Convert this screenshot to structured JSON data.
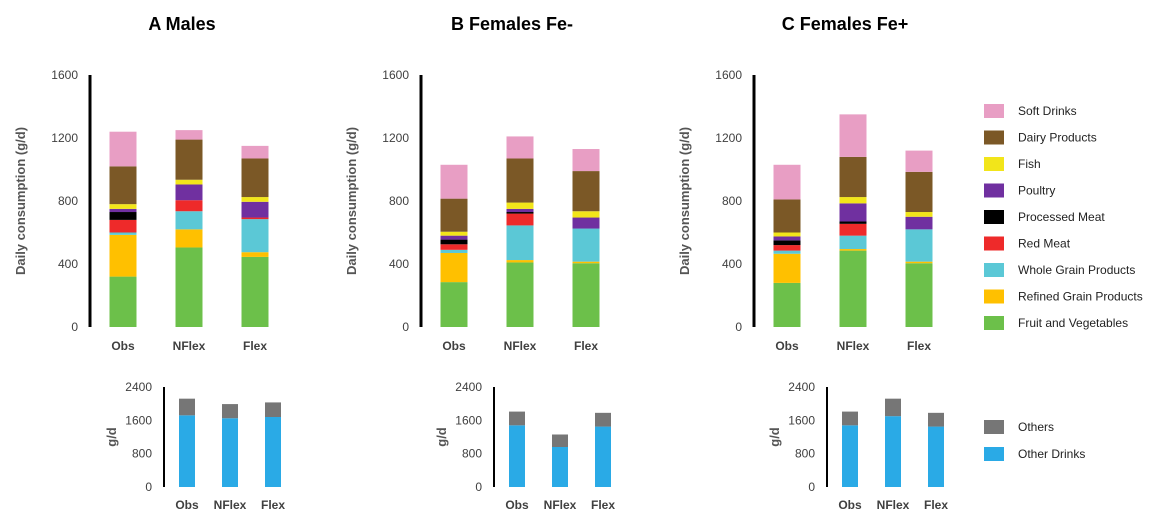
{
  "chart_data": [
    {
      "type": "bar",
      "stacked": true,
      "panel": "upper",
      "title": "A  Males",
      "ylabel": "Daily consumption (g/d)",
      "categories": [
        "Obs",
        "NFlex",
        "Flex"
      ],
      "ylim": [
        0,
        1600
      ],
      "yticks": [
        0,
        400,
        800,
        1200,
        1600
      ],
      "series": [
        {
          "name": "Fruit and Vegetables",
          "values": [
            320,
            505,
            445
          ]
        },
        {
          "name": "Refined Grain Products",
          "values": [
            265,
            115,
            30
          ]
        },
        {
          "name": "Whole Grain Products",
          "values": [
            15,
            115,
            210
          ]
        },
        {
          "name": "Red Meat",
          "values": [
            80,
            70,
            10
          ]
        },
        {
          "name": "Processed Meat",
          "values": [
            50,
            0,
            0
          ]
        },
        {
          "name": "Poultry",
          "values": [
            20,
            100,
            100
          ]
        },
        {
          "name": "Fish",
          "values": [
            30,
            30,
            30
          ]
        },
        {
          "name": "Dairy Products",
          "values": [
            240,
            255,
            245
          ]
        },
        {
          "name": "Soft Drinks",
          "values": [
            220,
            60,
            80
          ]
        }
      ]
    },
    {
      "type": "bar",
      "stacked": true,
      "panel": "upper",
      "title": "B  Females Fe-",
      "ylabel": "Daily consumption (g/d)",
      "categories": [
        "Obs",
        "NFlex",
        "Flex"
      ],
      "ylim": [
        0,
        1600
      ],
      "yticks": [
        0,
        400,
        800,
        1200,
        1600
      ],
      "series": [
        {
          "name": "Fruit and Vegetables",
          "values": [
            285,
            410,
            405
          ]
        },
        {
          "name": "Refined Grain Products",
          "values": [
            185,
            15,
            10
          ]
        },
        {
          "name": "Whole Grain Products",
          "values": [
            20,
            220,
            210
          ]
        },
        {
          "name": "Red Meat",
          "values": [
            35,
            75,
            0
          ]
        },
        {
          "name": "Processed Meat",
          "values": [
            30,
            10,
            0
          ]
        },
        {
          "name": "Poultry",
          "values": [
            25,
            20,
            70
          ]
        },
        {
          "name": "Fish",
          "values": [
            25,
            40,
            40
          ]
        },
        {
          "name": "Dairy Products",
          "values": [
            210,
            280,
            255
          ]
        },
        {
          "name": "Soft Drinks",
          "values": [
            215,
            140,
            140
          ]
        }
      ]
    },
    {
      "type": "bar",
      "stacked": true,
      "panel": "upper",
      "title": "C  Females Fe+",
      "ylabel": "Daily consumption (g/d)",
      "categories": [
        "Obs",
        "NFlex",
        "Flex"
      ],
      "ylim": [
        0,
        1600
      ],
      "yticks": [
        0,
        400,
        800,
        1200,
        1600
      ],
      "series": [
        {
          "name": "Fruit and Vegetables",
          "values": [
            280,
            485,
            405
          ]
        },
        {
          "name": "Refined Grain Products",
          "values": [
            185,
            10,
            10
          ]
        },
        {
          "name": "Whole Grain Products",
          "values": [
            20,
            85,
            205
          ]
        },
        {
          "name": "Red Meat",
          "values": [
            35,
            75,
            0
          ]
        },
        {
          "name": "Processed Meat",
          "values": [
            30,
            15,
            0
          ]
        },
        {
          "name": "Poultry",
          "values": [
            25,
            115,
            80
          ]
        },
        {
          "name": "Fish",
          "values": [
            25,
            40,
            30
          ]
        },
        {
          "name": "Dairy Products",
          "values": [
            210,
            255,
            255
          ]
        },
        {
          "name": "Soft Drinks",
          "values": [
            220,
            270,
            135
          ]
        }
      ]
    },
    {
      "type": "bar",
      "stacked": true,
      "panel": "lower",
      "ylabel": "g/d",
      "categories": [
        "Obs",
        "NFlex",
        "Flex"
      ],
      "ylim": [
        0,
        2400
      ],
      "yticks": [
        0,
        800,
        1600,
        2400
      ],
      "series": [
        {
          "name": "Other Drinks",
          "values": [
            1720,
            1650,
            1680
          ]
        },
        {
          "name": "Others",
          "values": [
            400,
            340,
            350
          ]
        }
      ]
    },
    {
      "type": "bar",
      "stacked": true,
      "panel": "lower",
      "ylabel": "g/d",
      "categories": [
        "Obs",
        "NFlex",
        "Flex"
      ],
      "ylim": [
        0,
        2400
      ],
      "yticks": [
        0,
        800,
        1600,
        2400
      ],
      "series": [
        {
          "name": "Other Drinks",
          "values": [
            1480,
            960,
            1450
          ]
        },
        {
          "name": "Others",
          "values": [
            330,
            300,
            330
          ]
        }
      ]
    },
    {
      "type": "bar",
      "stacked": true,
      "panel": "lower",
      "ylabel": "g/d",
      "categories": [
        "Obs",
        "NFlex",
        "Flex"
      ],
      "ylim": [
        0,
        2400
      ],
      "yticks": [
        0,
        800,
        1600,
        2400
      ],
      "series": [
        {
          "name": "Other Drinks",
          "values": [
            1480,
            1700,
            1450
          ]
        },
        {
          "name": "Others",
          "values": [
            330,
            420,
            330
          ]
        }
      ]
    }
  ],
  "legend_upper": [
    {
      "name": "Soft Drinks",
      "color": "#e89ec4"
    },
    {
      "name": "Dairy Products",
      "color": "#7b5826"
    },
    {
      "name": "Fish",
      "color": "#f2e51a"
    },
    {
      "name": "Poultry",
      "color": "#7030a0"
    },
    {
      "name": "Processed Meat",
      "color": "#000000"
    },
    {
      "name": "Red Meat",
      "color": "#ee2a2a"
    },
    {
      "name": "Whole Grain Products",
      "color": "#5bc8d6"
    },
    {
      "name": "Refined Grain Products",
      "color": "#ffc000"
    },
    {
      "name": "Fruit and Vegetables",
      "color": "#6cc04a"
    }
  ],
  "legend_lower": [
    {
      "name": "Others",
      "color": "#767676"
    },
    {
      "name": "Other Drinks",
      "color": "#2aaae6"
    }
  ],
  "colors": {
    "Fruit and Vegetables": "#6cc04a",
    "Refined Grain Products": "#ffc000",
    "Whole Grain Products": "#5bc8d6",
    "Red Meat": "#ee2a2a",
    "Processed Meat": "#000000",
    "Poultry": "#7030a0",
    "Fish": "#f2e51a",
    "Dairy Products": "#7b5826",
    "Soft Drinks": "#e89ec4",
    "Other Drinks": "#2aaae6",
    "Others": "#767676",
    "axis": "#000000"
  }
}
